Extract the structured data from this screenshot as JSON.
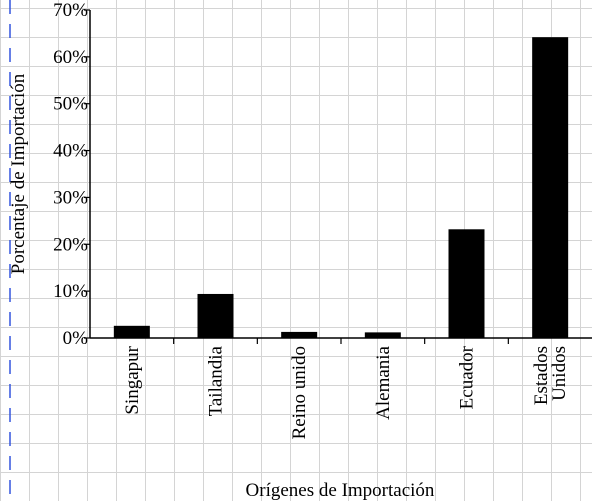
{
  "chart_data": {
    "type": "bar",
    "categories": [
      "Singapur",
      "Tailandia",
      "Reino unido",
      "Alemania",
      "Ecuador",
      "Estados Unidos"
    ],
    "values": [
      2.6,
      9.4,
      1.3,
      1.2,
      23.2,
      64.2
    ],
    "color": "#000000",
    "x_label": "Orígenes de Importación",
    "y_label": "Porcentaje de Importación",
    "ylim": [
      0,
      70
    ],
    "yticks": [
      {
        "value": 0,
        "label": "0%"
      },
      {
        "value": 10,
        "label": "10%"
      },
      {
        "value": 20,
        "label": "20%"
      },
      {
        "value": 30,
        "label": "30%"
      },
      {
        "value": 40,
        "label": "40%"
      },
      {
        "value": 50,
        "label": "50%"
      },
      {
        "value": 60,
        "label": "60%"
      },
      {
        "value": 70,
        "label": "70%"
      }
    ],
    "grid": false
  }
}
